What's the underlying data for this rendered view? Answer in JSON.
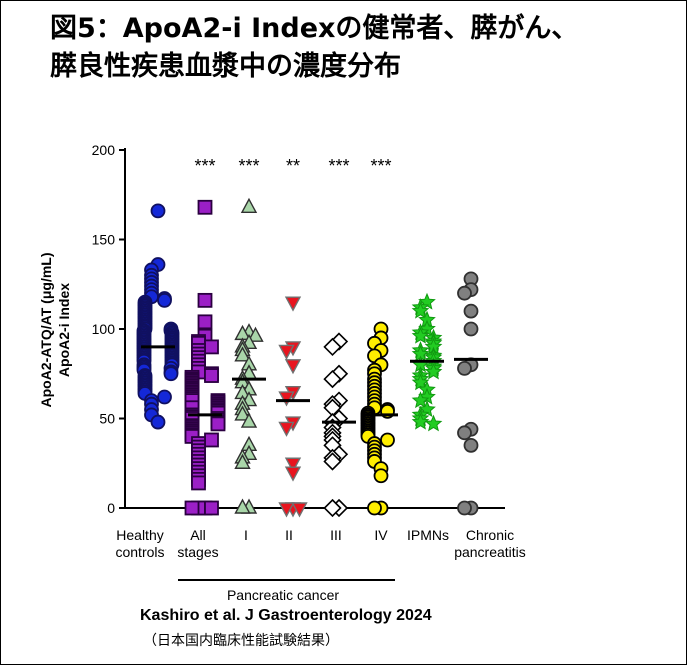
{
  "title": {
    "line1": "図5：ApoA2-i Indexの健常者、膵がん、",
    "line2": "膵良性疾患血漿中の濃度分布"
  },
  "citation": {
    "main": "Kashiro et al. J Gastroenterology  2024",
    "sub": "（日本国内臨床性能試験結果）"
  },
  "chart_data": {
    "type": "scatter",
    "ylabel_line1": "ApoA2-ATQ/AT (μg/mL)",
    "ylabel_line2": "ApoA2-i Index",
    "ylim": [
      0,
      200
    ],
    "yticks": [
      0,
      50,
      100,
      150,
      200
    ],
    "group_label": "Pancreatic cancer",
    "categories": [
      {
        "label": [
          "Healthy",
          "controls"
        ],
        "marker": "circle",
        "fill": "#1428d8",
        "stroke": "#101060",
        "mean": 90,
        "significance": "",
        "values": [
          166,
          136,
          133,
          130,
          128,
          126,
          124,
          122,
          120,
          118,
          117,
          116,
          115,
          114,
          113,
          112,
          111,
          110,
          109,
          108,
          107,
          106,
          105,
          104,
          103,
          102,
          101,
          100,
          100,
          99,
          99,
          98,
          98,
          97,
          97,
          96,
          96,
          95,
          95,
          94,
          94,
          93,
          93,
          92,
          92,
          91,
          91,
          90,
          90,
          89,
          89,
          88,
          88,
          87,
          87,
          86,
          86,
          85,
          85,
          84,
          84,
          83,
          83,
          82,
          82,
          81,
          80,
          80,
          79,
          78,
          78,
          77,
          76,
          75,
          74,
          73,
          72,
          71,
          70,
          69,
          68,
          67,
          66,
          65,
          64,
          62,
          60,
          58,
          55,
          52,
          48
        ]
      },
      {
        "label": [
          "All",
          "stages"
        ],
        "marker": "square",
        "fill": "#9b1fc6",
        "stroke": "#2a0040",
        "mean": 52,
        "significance": "***",
        "values": [
          168,
          116,
          104,
          96,
          93,
          92,
          90,
          88,
          86,
          84,
          82,
          80,
          78,
          76,
          75,
          74,
          73,
          72,
          71,
          70,
          69,
          68,
          67,
          66,
          65,
          64,
          63,
          62,
          61,
          60,
          60,
          59,
          58,
          57,
          56,
          56,
          55,
          54,
          53,
          52,
          51,
          50,
          50,
          49,
          48,
          47,
          46,
          45,
          44,
          43,
          42,
          41,
          40,
          38,
          36,
          34,
          32,
          30,
          28,
          26,
          24,
          22,
          20,
          18,
          16,
          14,
          0,
          0,
          0,
          0
        ]
      },
      {
        "label": [
          "I"
        ],
        "marker": "triangle-up",
        "fill": "#a9d6a9",
        "stroke": "#303030",
        "mean": 72,
        "significance": "***",
        "values": [
          168,
          98,
          97,
          96,
          92,
          90,
          88,
          85,
          80,
          75,
          72,
          70,
          66,
          64,
          60,
          58,
          55,
          52,
          48,
          35,
          30,
          28,
          25,
          0,
          0
        ]
      },
      {
        "label": [
          "II"
        ],
        "marker": "triangle-down",
        "fill": "#e8141e",
        "stroke": "#707070",
        "mean": 60,
        "significance": "**",
        "values": [
          115,
          90,
          88,
          80,
          65,
          62,
          48,
          45,
          25,
          20,
          0,
          0,
          0
        ]
      },
      {
        "label": [
          "III"
        ],
        "marker": "diamond",
        "fill": "#ffffff",
        "stroke": "#000000",
        "mean": 48,
        "significance": "***",
        "values": [
          93,
          90,
          75,
          72,
          60,
          58,
          56,
          50,
          48,
          45,
          42,
          40,
          38,
          35,
          30,
          28,
          26,
          0,
          0
        ]
      },
      {
        "label": [
          "IV"
        ],
        "marker": "circle",
        "fill": "#ffee00",
        "stroke": "#000000",
        "mean": 52,
        "significance": "***",
        "values": [
          100,
          95,
          92,
          88,
          85,
          80,
          77,
          75,
          72,
          70,
          68,
          66,
          64,
          62,
          60,
          58,
          56,
          55,
          54,
          53,
          52,
          51,
          50,
          49,
          48,
          47,
          46,
          45,
          44,
          43,
          42,
          41,
          40,
          38,
          36,
          34,
          32,
          30,
          28,
          26,
          22,
          18,
          0,
          0
        ]
      },
      {
        "label": [
          "IPMNs"
        ],
        "marker": "star",
        "fill": "#22cc22",
        "stroke": "#119911",
        "mean": 82,
        "significance": "",
        "values": [
          115,
          112,
          110,
          105,
          100,
          98,
          96,
          95,
          93,
          92,
          90,
          88,
          86,
          85,
          84,
          82,
          80,
          79,
          78,
          76,
          74,
          72,
          70,
          66,
          62,
          60,
          55,
          52,
          50,
          48,
          47
        ]
      },
      {
        "label": [
          "Chronic",
          "pancreatitis"
        ],
        "marker": "circle",
        "fill": "#808080",
        "stroke": "#303030",
        "mean": 83,
        "significance": "",
        "values": [
          128,
          122,
          120,
          110,
          100,
          80,
          78,
          44,
          42,
          35,
          0,
          0
        ]
      }
    ]
  }
}
